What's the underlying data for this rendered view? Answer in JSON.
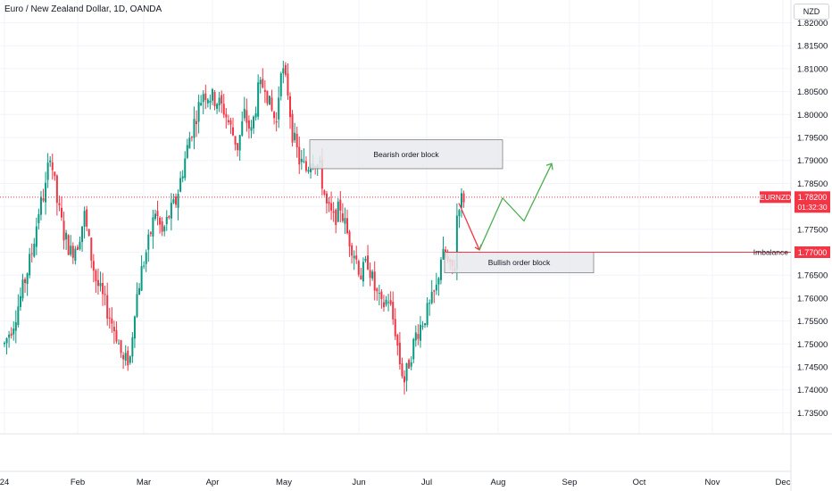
{
  "header": {
    "title": "Euro / New Zealand Dollar, 1D, OANDA",
    "currency": "NZD"
  },
  "colors": {
    "up": "#089981",
    "down": "#f23645",
    "grid": "#f0f3fa",
    "arrow_up": "#4caf50",
    "arrow_down": "#f23645",
    "box_fill": "#e9eaee",
    "box_stroke": "#808080"
  },
  "chart_data": {
    "type": "candlestick",
    "symbol": "EURNZD",
    "y_ticks": [
      "1.82000",
      "1.81500",
      "1.81000",
      "1.80500",
      "1.80000",
      "1.79500",
      "1.79000",
      "1.78500",
      "1.78000",
      "1.77500",
      "1.77000",
      "1.76500",
      "1.76000",
      "1.75500",
      "1.75000",
      "1.74500",
      "1.74000",
      "1.73500"
    ],
    "ylim": [
      1.733,
      1.823
    ],
    "x_ticks": [
      "24",
      "Feb",
      "Mar",
      "Apr",
      "May",
      "Jun",
      "Jul",
      "Aug",
      "Sep",
      "Oct",
      "Nov",
      "Dec"
    ],
    "last_price_label": {
      "symbol": "EURNZD",
      "price": "1.78200",
      "countdown": "01:32:30"
    },
    "imbalance": {
      "label": "Imbalance",
      "price": "1.77000"
    },
    "zones": [
      {
        "label": "Bearish order block",
        "top": 1.7945,
        "bottom": 1.7882
      },
      {
        "label": "Bullish order block",
        "top": 1.77,
        "bottom": 1.7655
      }
    ],
    "projection": {
      "down": [
        1.7807,
        1.7705
      ],
      "up": [
        1.7705,
        1.7818,
        1.7768,
        1.7893
      ]
    },
    "anchors": [
      [
        0,
        1.75
      ],
      [
        4,
        1.7548
      ],
      [
        8,
        1.762
      ],
      [
        12,
        1.77
      ],
      [
        15,
        1.779
      ],
      [
        18,
        1.784
      ],
      [
        20,
        1.792
      ],
      [
        23,
        1.781
      ],
      [
        26,
        1.774
      ],
      [
        29,
        1.77
      ],
      [
        32,
        1.772
      ],
      [
        35,
        1.778
      ],
      [
        38,
        1.769
      ],
      [
        40,
        1.764
      ],
      [
        43,
        1.76
      ],
      [
        46,
        1.756
      ],
      [
        49,
        1.752
      ],
      [
        52,
        1.746
      ],
      [
        55,
        1.747
      ],
      [
        57,
        1.758
      ],
      [
        60,
        1.766
      ],
      [
        63,
        1.772
      ],
      [
        66,
        1.779
      ],
      [
        69,
        1.774
      ],
      [
        72,
        1.778
      ],
      [
        75,
        1.781
      ],
      [
        78,
        1.788
      ],
      [
        81,
        1.795
      ],
      [
        84,
        1.8
      ],
      [
        87,
        1.805
      ],
      [
        90,
        1.804
      ],
      [
        93,
        1.803
      ],
      [
        96,
        1.801
      ],
      [
        99,
        1.797
      ],
      [
        102,
        1.793
      ],
      [
        105,
        1.8
      ],
      [
        108,
        1.796
      ],
      [
        111,
        1.805
      ],
      [
        114,
        1.807
      ],
      [
        116,
        1.802
      ],
      [
        119,
        1.798
      ],
      [
        121,
        1.811
      ],
      [
        124,
        1.805
      ],
      [
        126,
        1.796
      ],
      [
        129,
        1.79
      ],
      [
        132,
        1.788
      ],
      [
        135,
        1.791
      ],
      [
        138,
        1.788
      ],
      [
        141,
        1.78
      ],
      [
        144,
        1.777
      ],
      [
        147,
        1.78
      ],
      [
        150,
        1.774
      ],
      [
        153,
        1.77
      ],
      [
        156,
        1.765
      ],
      [
        159,
        1.768
      ],
      [
        162,
        1.762
      ],
      [
        165,
        1.758
      ],
      [
        168,
        1.76
      ],
      [
        171,
        1.753
      ],
      [
        173,
        1.746
      ],
      [
        175,
        1.742
      ],
      [
        177,
        1.746
      ],
      [
        180,
        1.752
      ],
      [
        183,
        1.755
      ],
      [
        186,
        1.758
      ],
      [
        189,
        1.762
      ],
      [
        191,
        1.769
      ],
      [
        193,
        1.769
      ],
      [
        195,
        1.766
      ],
      [
        197,
        1.767
      ],
      [
        198,
        1.778
      ],
      [
        199,
        1.781
      ],
      [
        200,
        1.7815
      ],
      [
        201,
        1.782
      ]
    ]
  }
}
